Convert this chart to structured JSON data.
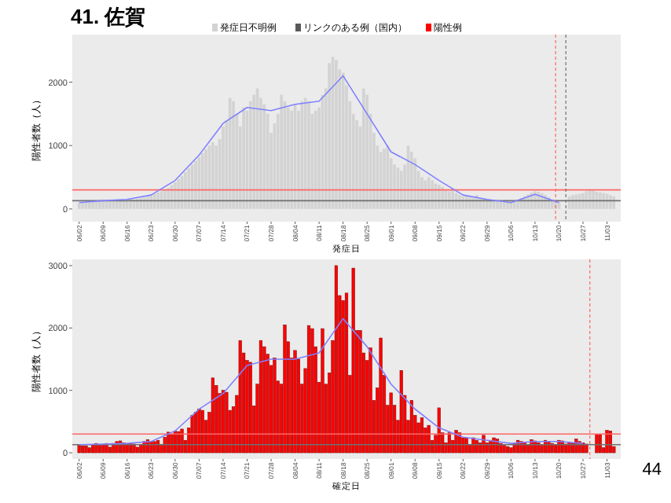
{
  "chart_data": [
    {
      "type": "bar",
      "title": "41. 佐賀",
      "xlabel": "発症日",
      "ylabel": "陽性者数（人）",
      "legend": "top",
      "grid": false,
      "stacked": true,
      "x": [
        "--06-02",
        "--06-03",
        "--06-04",
        "--06-05",
        "--06-06",
        "--06-07",
        "--06-08",
        "--06-09",
        "--06-10",
        "--06-11",
        "--06-12",
        "--06-13",
        "--06-14",
        "--06-15",
        "--06-16",
        "--06-17",
        "--06-18",
        "--06-19",
        "--06-20",
        "--06-21",
        "--06-22",
        "--06-23",
        "--06-24",
        "--06-25",
        "--06-26",
        "--06-27",
        "--06-28",
        "--06-29",
        "--06-30",
        "--07-01",
        "--07-02",
        "--07-03",
        "--07-04",
        "--07-05",
        "--07-06",
        "--07-07",
        "--07-08",
        "--07-09",
        "--07-10",
        "--07-11",
        "--07-12",
        "--07-13",
        "--07-14",
        "--07-15",
        "--07-16",
        "--07-17",
        "--07-18",
        "--07-19",
        "--07-20",
        "--07-21",
        "--07-22",
        "--07-23",
        "--07-24",
        "--07-25",
        "--07-26",
        "--07-27",
        "--07-28",
        "--07-29",
        "--07-30",
        "--07-31",
        "--08-01",
        "--08-02",
        "--08-03",
        "--08-04",
        "--08-05",
        "--08-06",
        "--08-07",
        "--08-08",
        "--08-09",
        "--08-10",
        "--08-11",
        "--08-12",
        "--08-13",
        "--08-14",
        "--08-15",
        "--08-16",
        "--08-17",
        "--08-18",
        "--08-19",
        "--08-20",
        "--08-21",
        "--08-22",
        "--08-23",
        "--08-24",
        "--08-25",
        "--08-26",
        "--08-27",
        "--08-28",
        "--08-29",
        "--08-30",
        "--08-31",
        "--09-01",
        "--09-02",
        "--09-03",
        "--09-04",
        "--09-05",
        "--09-06",
        "--09-07",
        "--09-08",
        "--09-09",
        "--09-10",
        "--09-11",
        "--09-12",
        "--09-13",
        "--09-14",
        "--09-15",
        "--09-16",
        "--09-17",
        "--09-18",
        "--09-19",
        "--09-20",
        "--09-21",
        "--09-22",
        "--09-23",
        "--09-24",
        "--09-25",
        "--09-26",
        "--09-27",
        "--09-28",
        "--09-29",
        "--09-30",
        "--10-01",
        "--10-02",
        "--10-03",
        "--10-04",
        "--10-05",
        "--10-06",
        "--10-07",
        "--10-08",
        "--10-09",
        "--10-10",
        "--10-11",
        "--10-12",
        "--10-13",
        "--10-14",
        "--10-15",
        "--10-16",
        "--10-17",
        "--10-18",
        "--10-19",
        "--10-20",
        "--10-21",
        "--10-22",
        "--10-23",
        "--10-24",
        "--10-25",
        "--10-26",
        "--10-27",
        "--10-28",
        "--10-29",
        "--10-30",
        "--10-31",
        "--11-01",
        "--11-02",
        "--11-03",
        "--11-04",
        "--11-05"
      ],
      "series": [
        {
          "name": "発症日不明例",
          "color": "#d3d3d3",
          "values": [
            90,
            100,
            110,
            100,
            120,
            110,
            130,
            120,
            130,
            140,
            130,
            150,
            140,
            130,
            140,
            150,
            150,
            160,
            170,
            180,
            200,
            220,
            240,
            260,
            280,
            300,
            330,
            380,
            420,
            470,
            520,
            580,
            640,
            700,
            760,
            820,
            880,
            940,
            1000,
            1050,
            1000,
            1100,
            1300,
            1400,
            1750,
            1700,
            1500,
            1300,
            1600,
            1550,
            1700,
            1800,
            1900,
            1750,
            1650,
            1500,
            1200,
            1350,
            1500,
            1800,
            1700,
            1600,
            1550,
            1650,
            1550,
            1700,
            1750,
            1700,
            1500,
            1550,
            1600,
            1800,
            1900,
            2300,
            2400,
            2350,
            2200,
            2150,
            1950,
            1700,
            1500,
            1400,
            1300,
            1900,
            1800,
            1500,
            1200,
            1000,
            900,
            950,
            1000,
            800,
            700,
            650,
            600,
            700,
            1000,
            900,
            800,
            600,
            500,
            450,
            500,
            450,
            400,
            380,
            350,
            300,
            280,
            320,
            250,
            220,
            200,
            210,
            190,
            180,
            220,
            170,
            160,
            150,
            140,
            130,
            120,
            110,
            100,
            100,
            110,
            120,
            140,
            170,
            200,
            230,
            260,
            280,
            270,
            250,
            220,
            180,
            150,
            120,
            100,
            null,
            null,
            200,
            220,
            230,
            240,
            250,
            280,
            300,
            290,
            270,
            260,
            250,
            240,
            220,
            200
          ]
        },
        {
          "name": "リンクのある例（国内）",
          "color": "#595959",
          "values": [
            null,
            null,
            null,
            null,
            null,
            null,
            null,
            null,
            null,
            null,
            null,
            null,
            null,
            null,
            null,
            null,
            null,
            null,
            null,
            null,
            null,
            null,
            null,
            null,
            null,
            null,
            null,
            null,
            null,
            null,
            null,
            null,
            null,
            null,
            null,
            null,
            null,
            null,
            null,
            null,
            null,
            null,
            null,
            null,
            null,
            null,
            null,
            null,
            null,
            null,
            null,
            null,
            null,
            null,
            null,
            null,
            null,
            null,
            null,
            null,
            null,
            null,
            null,
            null,
            null,
            null,
            null,
            null,
            null,
            null,
            null,
            null,
            null,
            null,
            null,
            null,
            null,
            null,
            null,
            null,
            null,
            null,
            null,
            null,
            null,
            null,
            null,
            null,
            null,
            null,
            null,
            null,
            null,
            null,
            null,
            null,
            null,
            null,
            null,
            null,
            null,
            null,
            null,
            null,
            null,
            null,
            null,
            null,
            null,
            null,
            null,
            null,
            null,
            null,
            null,
            null,
            null,
            null,
            null,
            null,
            null,
            null,
            null,
            null,
            null,
            null,
            null,
            null,
            null,
            null,
            null,
            null,
            null,
            null,
            null,
            null,
            null,
            null,
            null,
            null,
            null,
            null,
            null,
            null,
            null,
            null,
            null,
            null,
            null,
            null,
            null,
            null,
            null,
            null,
            null,
            null,
            null
          ]
        },
        {
          "type": "line",
          "color": "#8080ff",
          "x": [
            "--06-02",
            "--06-09",
            "--06-16",
            "--06-23",
            "--06-30",
            "--07-07",
            "--07-14",
            "--07-21",
            "--07-28",
            "--08-04",
            "--08-11",
            "--08-18",
            "--08-25",
            "--09-01",
            "--09-08",
            "--09-15",
            "--09-22",
            "--09-29",
            "--10-06",
            "--10-13",
            "--10-20"
          ],
          "values": [
            100,
            130,
            150,
            220,
            450,
            850,
            1350,
            1600,
            1550,
            1650,
            1700,
            2100,
            1500,
            900,
            700,
            450,
            220,
            150,
            100,
            230,
            100
          ]
        }
      ],
      "xlim": [
        "--05-31",
        "--11-07"
      ],
      "ylim": [
        -200,
        2750
      ],
      "yticks": [
        0,
        1000,
        2000
      ],
      "xticks": [
        {
          "value": "--06-02",
          "label": "06/02"
        },
        {
          "value": "--06-09",
          "label": "06/09"
        },
        {
          "value": "--06-16",
          "label": "06/16"
        },
        {
          "value": "--06-23",
          "label": "06/23"
        },
        {
          "value": "--06-30",
          "label": "06/30"
        },
        {
          "value": "--07-07",
          "label": "07/07"
        },
        {
          "value": "--07-14",
          "label": "07/14"
        },
        {
          "value": "--07-21",
          "label": "07/21"
        },
        {
          "value": "--07-28",
          "label": "07/28"
        },
        {
          "value": "--08-04",
          "label": "08/04"
        },
        {
          "value": "--08-11",
          "label": "08/11"
        },
        {
          "value": "--08-18",
          "label": "08/18"
        },
        {
          "value": "--08-25",
          "label": "08/25"
        },
        {
          "value": "--09-01",
          "label": "09/01"
        },
        {
          "value": "--09-08",
          "label": "09/08"
        },
        {
          "value": "--09-15",
          "label": "09/15"
        },
        {
          "value": "--09-22",
          "label": "09/22"
        },
        {
          "value": "--09-29",
          "label": "09/29"
        },
        {
          "value": "--10-06",
          "label": "10/06"
        },
        {
          "value": "--10-13",
          "label": "10/13"
        },
        {
          "value": "--10-20",
          "label": "10/20"
        },
        {
          "value": "--10-27",
          "label": "10/27"
        },
        {
          "value": "--11-03",
          "label": "11/03"
        }
      ],
      "ref_lines": [
        {
          "axis": "y",
          "value": 300,
          "color": "#ff6666"
        },
        {
          "axis": "y",
          "value": 130,
          "color": "#707070"
        },
        {
          "axis": "x",
          "value": "--10-19",
          "color": "#ff6666",
          "line_style": "dashed"
        },
        {
          "axis": "x",
          "value": "--10-22",
          "color": "#707070",
          "line_style": "dashed"
        }
      ]
    },
    {
      "type": "bar",
      "xlabel": "確定日",
      "ylabel": "陽性者数（人）",
      "legend": false,
      "grid": false,
      "annotations": [
        "44"
      ],
      "x": [
        "--06-02",
        "--06-03",
        "--06-04",
        "--06-05",
        "--06-06",
        "--06-07",
        "--06-08",
        "--06-09",
        "--06-10",
        "--06-11",
        "--06-12",
        "--06-13",
        "--06-14",
        "--06-15",
        "--06-16",
        "--06-17",
        "--06-18",
        "--06-19",
        "--06-20",
        "--06-21",
        "--06-22",
        "--06-23",
        "--06-24",
        "--06-25",
        "--06-26",
        "--06-27",
        "--06-28",
        "--06-29",
        "--06-30",
        "--07-01",
        "--07-02",
        "--07-03",
        "--07-04",
        "--07-05",
        "--07-06",
        "--07-07",
        "--07-08",
        "--07-09",
        "--07-10",
        "--07-11",
        "--07-12",
        "--07-13",
        "--07-14",
        "--07-15",
        "--07-16",
        "--07-17",
        "--07-18",
        "--07-19",
        "--07-20",
        "--07-21",
        "--07-22",
        "--07-23",
        "--07-24",
        "--07-25",
        "--07-26",
        "--07-27",
        "--07-28",
        "--07-29",
        "--07-30",
        "--07-31",
        "--08-01",
        "--08-02",
        "--08-03",
        "--08-04",
        "--08-05",
        "--08-06",
        "--08-07",
        "--08-08",
        "--08-09",
        "--08-10",
        "--08-11",
        "--08-12",
        "--08-13",
        "--08-14",
        "--08-15",
        "--08-16",
        "--08-17",
        "--08-18",
        "--08-19",
        "--08-20",
        "--08-21",
        "--08-22",
        "--08-23",
        "--08-24",
        "--08-25",
        "--08-26",
        "--08-27",
        "--08-28",
        "--08-29",
        "--08-30",
        "--08-31",
        "--09-01",
        "--09-02",
        "--09-03",
        "--09-04",
        "--09-05",
        "--09-06",
        "--09-07",
        "--09-08",
        "--09-09",
        "--09-10",
        "--09-11",
        "--09-12",
        "--09-13",
        "--09-14",
        "--09-15",
        "--09-16",
        "--09-17",
        "--09-18",
        "--09-19",
        "--09-20",
        "--09-21",
        "--09-22",
        "--09-23",
        "--09-24",
        "--09-25",
        "--09-26",
        "--09-27",
        "--09-28",
        "--09-29",
        "--09-30",
        "--10-01",
        "--10-02",
        "--10-03",
        "--10-04",
        "--10-05",
        "--10-06",
        "--10-07",
        "--10-08",
        "--10-09",
        "--10-10",
        "--10-11",
        "--10-12",
        "--10-13",
        "--10-14",
        "--10-15",
        "--10-16",
        "--10-17",
        "--10-18",
        "--10-19",
        "--10-20",
        "--10-21",
        "--10-22",
        "--10-23",
        "--10-24",
        "--10-25",
        "--10-26",
        "--10-27",
        "--10-28",
        "--10-29",
        "--10-30",
        "--10-31",
        "--11-01",
        "--11-02",
        "--11-03",
        "--11-04",
        "--11-05"
      ],
      "series": [
        {
          "name": "陽性例",
          "color": "#ff0000",
          "values": [
            120,
            110,
            110,
            80,
            130,
            150,
            120,
            130,
            150,
            90,
            150,
            180,
            190,
            160,
            150,
            150,
            140,
            90,
            130,
            180,
            210,
            180,
            180,
            200,
            120,
            250,
            330,
            300,
            350,
            340,
            380,
            200,
            400,
            600,
            650,
            700,
            680,
            520,
            650,
            1200,
            1080,
            950,
            1000,
            970,
            680,
            740,
            920,
            1800,
            1600,
            1480,
            1450,
            750,
            1100,
            1800,
            1700,
            1580,
            1400,
            1520,
            1150,
            1100,
            2050,
            1780,
            1520,
            1640,
            1500,
            1100,
            1350,
            2040,
            1990,
            1700,
            1130,
            1990,
            1100,
            1280,
            1800,
            3000,
            2520,
            2440,
            2560,
            1240,
            2960,
            1960,
            1960,
            1600,
            1480,
            1680,
            840,
            1040,
            1840,
            1240,
            760,
            960,
            760,
            520,
            1320,
            920,
            520,
            840,
            600,
            480,
            560,
            400,
            440,
            200,
            280,
            720,
            320,
            160,
            320,
            200,
            360,
            320,
            240,
            240,
            120,
            240,
            200,
            160,
            280,
            160,
            200,
            240,
            220,
            150,
            120,
            100,
            80,
            150,
            200,
            180,
            170,
            120,
            210,
            190,
            160,
            120,
            200,
            180,
            150,
            130,
            200,
            190,
            140,
            170,
            150,
            220,
            180,
            160,
            140,
            null,
            null,
            300,
            300,
            80,
            360,
            350,
            100
          ]
        },
        {
          "type": "line",
          "color": "#8080ff",
          "x": [
            "--06-02",
            "--06-09",
            "--06-16",
            "--06-23",
            "--06-30",
            "--07-07",
            "--07-14",
            "--07-21",
            "--07-28",
            "--08-04",
            "--08-11",
            "--08-18",
            "--08-25",
            "--09-01",
            "--09-08",
            "--09-15",
            "--09-22",
            "--09-29",
            "--10-06",
            "--10-13",
            "--10-20",
            "--10-27"
          ],
          "values": [
            130,
            140,
            150,
            180,
            350,
            700,
            950,
            1400,
            1500,
            1500,
            1600,
            2150,
            1700,
            1100,
            700,
            400,
            250,
            200,
            150,
            180,
            180,
            150
          ]
        }
      ],
      "xlim": [
        "--05-31",
        "--11-07"
      ],
      "ylim": [
        -100,
        3100
      ],
      "yticks": [
        0,
        1000,
        2000,
        3000
      ],
      "xticks": [
        {
          "value": "--06-02",
          "label": "06/02"
        },
        {
          "value": "--06-09",
          "label": "06/09"
        },
        {
          "value": "--06-16",
          "label": "06/16"
        },
        {
          "value": "--06-23",
          "label": "06/23"
        },
        {
          "value": "--06-30",
          "label": "06/30"
        },
        {
          "value": "--07-07",
          "label": "07/07"
        },
        {
          "value": "--07-14",
          "label": "07/14"
        },
        {
          "value": "--07-21",
          "label": "07/21"
        },
        {
          "value": "--07-28",
          "label": "07/28"
        },
        {
          "value": "--08-04",
          "label": "08/04"
        },
        {
          "value": "--08-11",
          "label": "08/11"
        },
        {
          "value": "--08-18",
          "label": "08/18"
        },
        {
          "value": "--08-25",
          "label": "08/25"
        },
        {
          "value": "--09-01",
          "label": "09/01"
        },
        {
          "value": "--09-08",
          "label": "09/08"
        },
        {
          "value": "--09-15",
          "label": "09/15"
        },
        {
          "value": "--09-22",
          "label": "09/22"
        },
        {
          "value": "--09-29",
          "label": "09/29"
        },
        {
          "value": "--10-06",
          "label": "10/06"
        },
        {
          "value": "--10-13",
          "label": "10/13"
        },
        {
          "value": "--10-20",
          "label": "10/20"
        },
        {
          "value": "--10-27",
          "label": "10/27"
        },
        {
          "value": "--11-03",
          "label": "11/03"
        }
      ],
      "ref_lines": [
        {
          "axis": "y",
          "value": 300,
          "color": "#ff6666"
        },
        {
          "axis": "y",
          "value": 130,
          "color": "#707070"
        },
        {
          "axis": "x",
          "value": "--10-29",
          "color": "#ff6666",
          "line_style": "dashed"
        }
      ]
    }
  ]
}
